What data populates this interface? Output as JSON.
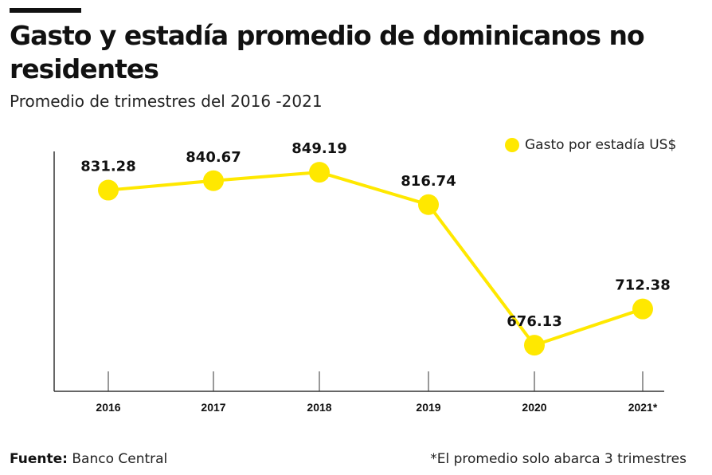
{
  "header": {
    "title": "Gasto y estadía promedio de dominicanos no residentes",
    "subtitle": "Promedio de trimestres del 2016 -2021"
  },
  "legend": {
    "label": "Gasto por estadía US$"
  },
  "footer": {
    "source_label": "Fuente:",
    "source_value": "Banco Central",
    "note": "*El promedio solo abarca 3 trimestres"
  },
  "colors": {
    "series": "#ffe800",
    "axis": "#333333",
    "text": "#111111"
  },
  "chart_data": {
    "type": "line",
    "title": "Gasto y estadía promedio de dominicanos no residentes",
    "subtitle": "Promedio de trimestres del 2016 -2021",
    "categories": [
      "2016",
      "2017",
      "2018",
      "2019",
      "2020",
      "2021*"
    ],
    "series": [
      {
        "name": "Gasto por estadía US$",
        "values": [
          831.28,
          840.67,
          849.19,
          816.74,
          676.13,
          712.38
        ],
        "labels": [
          "831.28",
          "840.67",
          "849.19",
          "816.74",
          "676.13",
          "712.38"
        ]
      }
    ],
    "ylim": [
      630,
      870
    ],
    "grid": false,
    "legend_position": "top-right",
    "marker": "circle",
    "data_labels": true
  }
}
